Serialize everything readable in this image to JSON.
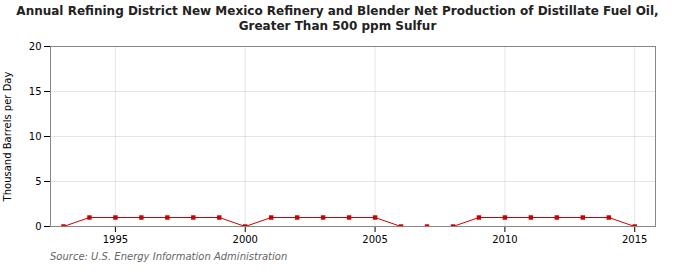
{
  "chart_data": {
    "type": "line",
    "title": "Annual Refining District New Mexico Refinery and Blender Net Production of Distillate Fuel Oil,\nGreater Than 500 ppm Sulfur",
    "ylabel": "Thousand Barrels per Day",
    "source": "Source: U.S. Energy Information Administration",
    "x": [
      1993,
      1994,
      1995,
      1996,
      1997,
      1998,
      1999,
      2000,
      2001,
      2002,
      2003,
      2004,
      2005,
      2006,
      2007,
      2008,
      2009,
      2010,
      2011,
      2012,
      2013,
      2014,
      2015
    ],
    "values": [
      0.0,
      1.0,
      1.0,
      1.0,
      1.0,
      1.0,
      1.0,
      0.0,
      1.0,
      1.0,
      1.0,
      1.0,
      1.0,
      0.0,
      0.0,
      0.0,
      1.0,
      1.0,
      1.0,
      1.0,
      1.0,
      1.0,
      0.0
    ],
    "color": "#cc0000",
    "marker": "square",
    "xlim": [
      1992.5,
      2015.8
    ],
    "ylim": [
      0,
      20
    ],
    "xticks": [
      1995,
      2000,
      2005,
      2010,
      2015
    ],
    "yticks": [
      0,
      5,
      10,
      15,
      20
    ],
    "grid": true
  }
}
